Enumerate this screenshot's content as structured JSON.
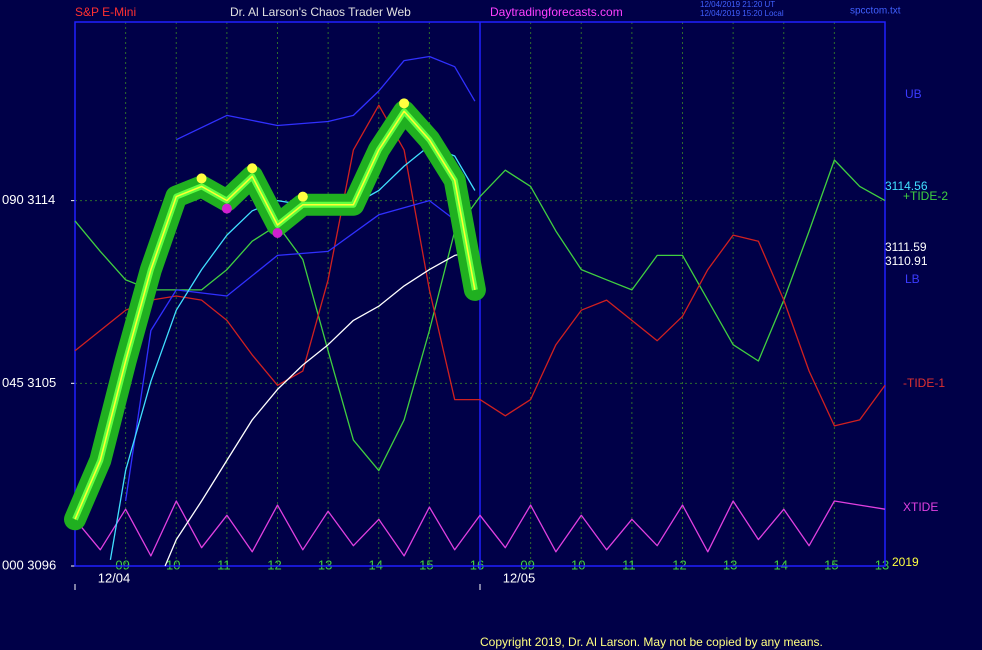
{
  "chart_data": {
    "type": "line",
    "header": {
      "symbol": "S&P E-Mini",
      "title": "Dr. Al Larson's Chaos Trader Web",
      "site": "Daytradingforecasts.com",
      "stamp_ut": "12/04/2019 21:20 UT",
      "stamp_local": "12/04/2019 15:20 Local",
      "file": "spcctom.txt"
    },
    "footer": "Copyright 2019, Dr. Al Larson. May not be copied by any means.",
    "xlim": [
      0,
      16
    ],
    "ylim": [
      3096,
      3122.8
    ],
    "yticks": [
      {
        "value": 3096,
        "label": "000  3096"
      },
      {
        "value": 3105,
        "label": "045  3105"
      },
      {
        "value": 3114,
        "label": "090  3114"
      }
    ],
    "xticks": [
      {
        "value": 1,
        "label": "09"
      },
      {
        "value": 2,
        "label": "10"
      },
      {
        "value": 3,
        "label": "11"
      },
      {
        "value": 4,
        "label": "12"
      },
      {
        "value": 5,
        "label": "13"
      },
      {
        "value": 6,
        "label": "14"
      },
      {
        "value": 7,
        "label": "15"
      },
      {
        "value": 8,
        "label": "16"
      },
      {
        "value": 9,
        "label": "09"
      },
      {
        "value": 10,
        "label": "10"
      },
      {
        "value": 11,
        "label": "11"
      },
      {
        "value": 12,
        "label": "12"
      },
      {
        "value": 13,
        "label": "13"
      },
      {
        "value": 14,
        "label": "14"
      },
      {
        "value": 15,
        "label": "15"
      },
      {
        "value": 16,
        "label": "13"
      }
    ],
    "date_labels": [
      "12/04",
      "12/05"
    ],
    "now_x": 8,
    "grid": true,
    "annotations": [
      {
        "text": "UB",
        "color": "#3b3bff"
      },
      {
        "text": "3114.56",
        "color": "#40e0ff"
      },
      {
        "text": "+TIDE-2",
        "color": "#40d040"
      },
      {
        "text": "3111.59",
        "color": "#ffffff"
      },
      {
        "text": "3110.91",
        "color": "#ffffff"
      },
      {
        "text": "LB",
        "color": "#3b3bff"
      },
      {
        "text": "-TIDE-1",
        "color": "#e03030"
      },
      {
        "text": "XTIDE",
        "color": "#e040e0"
      },
      {
        "text": "2019",
        "color": "#ffff40"
      }
    ],
    "series": [
      {
        "name": "+TIDE-2",
        "color": "#40d040",
        "x": [
          0,
          0.5,
          1,
          1.5,
          2,
          2.5,
          3,
          3.5,
          4,
          4.5,
          5,
          5.5,
          6,
          6.5,
          7,
          7.5,
          8,
          8.5,
          9,
          9.5,
          10,
          10.5,
          11,
          11.5,
          12,
          12.5,
          13,
          13.5,
          14,
          14.5,
          15,
          15.5,
          16
        ],
        "values": [
          3113.0,
          3111.5,
          3110.1,
          3109.6,
          3109.6,
          3109.6,
          3110.6,
          3112.0,
          3112.8,
          3111.1,
          3106.6,
          3102.2,
          3100.7,
          3103.2,
          3107.6,
          3112.5,
          3114.2,
          3115.5,
          3114.7,
          3112.5,
          3110.6,
          3110.1,
          3109.6,
          3111.3,
          3111.3,
          3109.1,
          3106.9,
          3106.1,
          3109.1,
          3112.5,
          3116.0,
          3114.7,
          3114.0
        ]
      },
      {
        "name": "-TIDE-1",
        "color": "#d02020",
        "x": [
          0,
          0.5,
          1,
          1.5,
          2,
          2.5,
          3,
          3.5,
          4,
          4.5,
          5,
          5.5,
          6,
          6.5,
          7,
          7.5,
          8,
          8.5,
          9,
          9.5,
          10,
          10.5,
          11,
          11.5,
          12,
          12.5,
          13,
          13.5,
          14,
          14.5,
          15,
          15.5,
          16
        ],
        "values": [
          3106.6,
          3107.6,
          3108.6,
          3109.1,
          3109.3,
          3109.1,
          3108.1,
          3106.4,
          3104.9,
          3105.6,
          3110.1,
          3116.5,
          3118.7,
          3116.5,
          3109.6,
          3104.2,
          3104.2,
          3103.4,
          3104.2,
          3106.9,
          3108.6,
          3109.1,
          3108.1,
          3107.1,
          3108.3,
          3110.6,
          3112.3,
          3112.0,
          3109.1,
          3105.6,
          3102.9,
          3103.2,
          3104.9
        ]
      },
      {
        "name": "XTIDE",
        "color": "#e040e0",
        "x": [
          0,
          0.5,
          1,
          1.5,
          2,
          2.5,
          3,
          3.5,
          4,
          4.5,
          5,
          5.5,
          6,
          6.5,
          7,
          7.5,
          8,
          8.5,
          9,
          9.5,
          10,
          10.5,
          11,
          11.5,
          12,
          12.5,
          13,
          13.5,
          14,
          14.5,
          15,
          15.5,
          16
        ],
        "values": [
          3098.3,
          3096.8,
          3098.8,
          3096.5,
          3099.2,
          3096.9,
          3098.5,
          3096.7,
          3099.0,
          3096.8,
          3098.7,
          3097.0,
          3098.3,
          3096.5,
          3098.9,
          3096.8,
          3098.5,
          3096.9,
          3099.0,
          3096.7,
          3098.5,
          3096.8,
          3098.3,
          3097.0,
          3099.0,
          3096.7,
          3099.2,
          3097.3,
          3098.8,
          3097.0,
          3099.2,
          3099.0,
          3098.8
        ]
      },
      {
        "name": "UB",
        "color": "#3030ff",
        "x": [
          2,
          3,
          4,
          5,
          5.5,
          6,
          6.5,
          7,
          7.5,
          7.9
        ],
        "values": [
          3117.0,
          3118.2,
          3117.7,
          3117.9,
          3118.2,
          3119.4,
          3120.9,
          3121.1,
          3120.6,
          3118.9
        ]
      },
      {
        "name": "LB",
        "color": "#3030ff",
        "x": [
          1,
          1.5,
          2,
          3,
          4,
          5,
          6,
          7,
          7.9
        ],
        "values": [
          3099.2,
          3107.6,
          3109.6,
          3109.3,
          3111.3,
          3111.5,
          3113.3,
          3114.0,
          3112.3
        ]
      },
      {
        "name": "white-average",
        "color": "#ffffff",
        "x": [
          1.78,
          2,
          2.5,
          3,
          3.5,
          4,
          4.5,
          5,
          5.5,
          6,
          6.5,
          7,
          7.5,
          7.9
        ],
        "values": [
          3096.0,
          3097.3,
          3099.2,
          3101.2,
          3103.2,
          3104.7,
          3105.9,
          3106.9,
          3108.1,
          3108.8,
          3109.8,
          3110.6,
          3111.3,
          3111.5
        ]
      },
      {
        "name": "cyan-average",
        "color": "#40e0ff",
        "x": [
          0.7,
          1,
          1.5,
          2,
          2.5,
          3,
          3.5,
          4,
          4.5,
          5,
          5.5,
          6,
          6.5,
          7,
          7.5,
          7.9
        ],
        "values": [
          3096.3,
          3100.7,
          3105.1,
          3108.6,
          3110.6,
          3112.3,
          3113.5,
          3114.0,
          3113.8,
          3113.8,
          3113.8,
          3114.5,
          3115.7,
          3116.7,
          3116.2,
          3114.5
        ]
      },
      {
        "name": "price",
        "color": "#ffff30",
        "halo": "#20b020",
        "x": [
          0,
          0.5,
          1,
          1.5,
          2,
          2.5,
          3,
          3.5,
          4,
          4.5,
          5,
          5.5,
          6,
          6.5,
          7,
          7.5,
          7.9
        ],
        "values": [
          3098.3,
          3101.2,
          3106.1,
          3110.6,
          3114.2,
          3114.7,
          3114.0,
          3115.2,
          3112.8,
          3113.8,
          3113.8,
          3113.8,
          3116.5,
          3118.4,
          3117.0,
          3115.0,
          3109.6
        ]
      }
    ]
  }
}
